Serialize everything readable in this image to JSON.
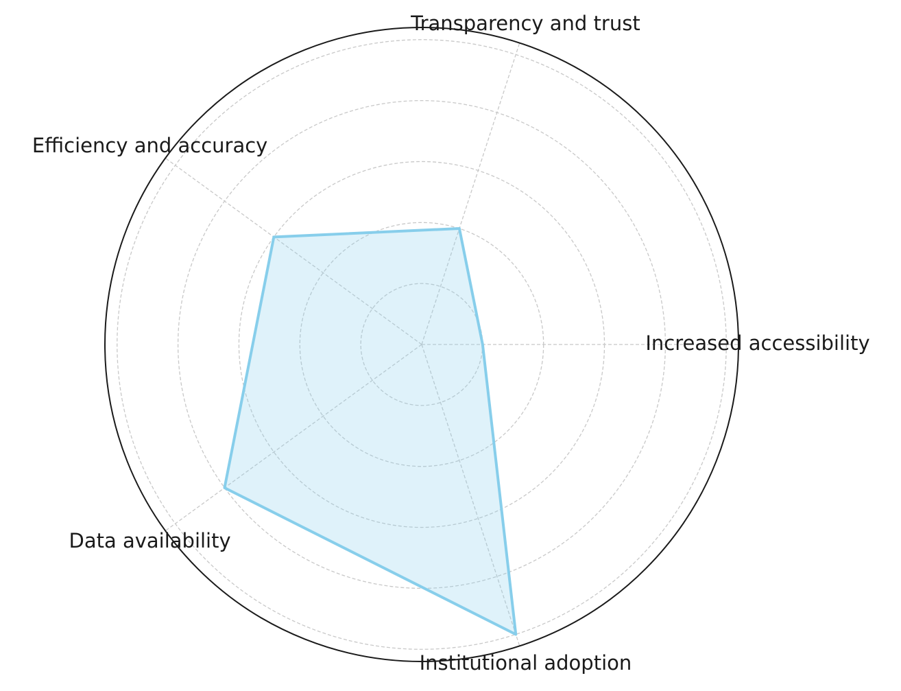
{
  "chart_data": {
    "type": "radar",
    "categories": [
      "Increased accessibility",
      "Transparency and trust",
      "Efficiency and accuracy",
      "Data availability",
      "Institutional adoption"
    ],
    "values": [
      1,
      2,
      3,
      4,
      5
    ],
    "color": "#87ceeb",
    "ylim": [
      0,
      5.2
    ],
    "yticks": [
      1,
      2,
      3,
      4,
      5
    ],
    "grid": true
  }
}
